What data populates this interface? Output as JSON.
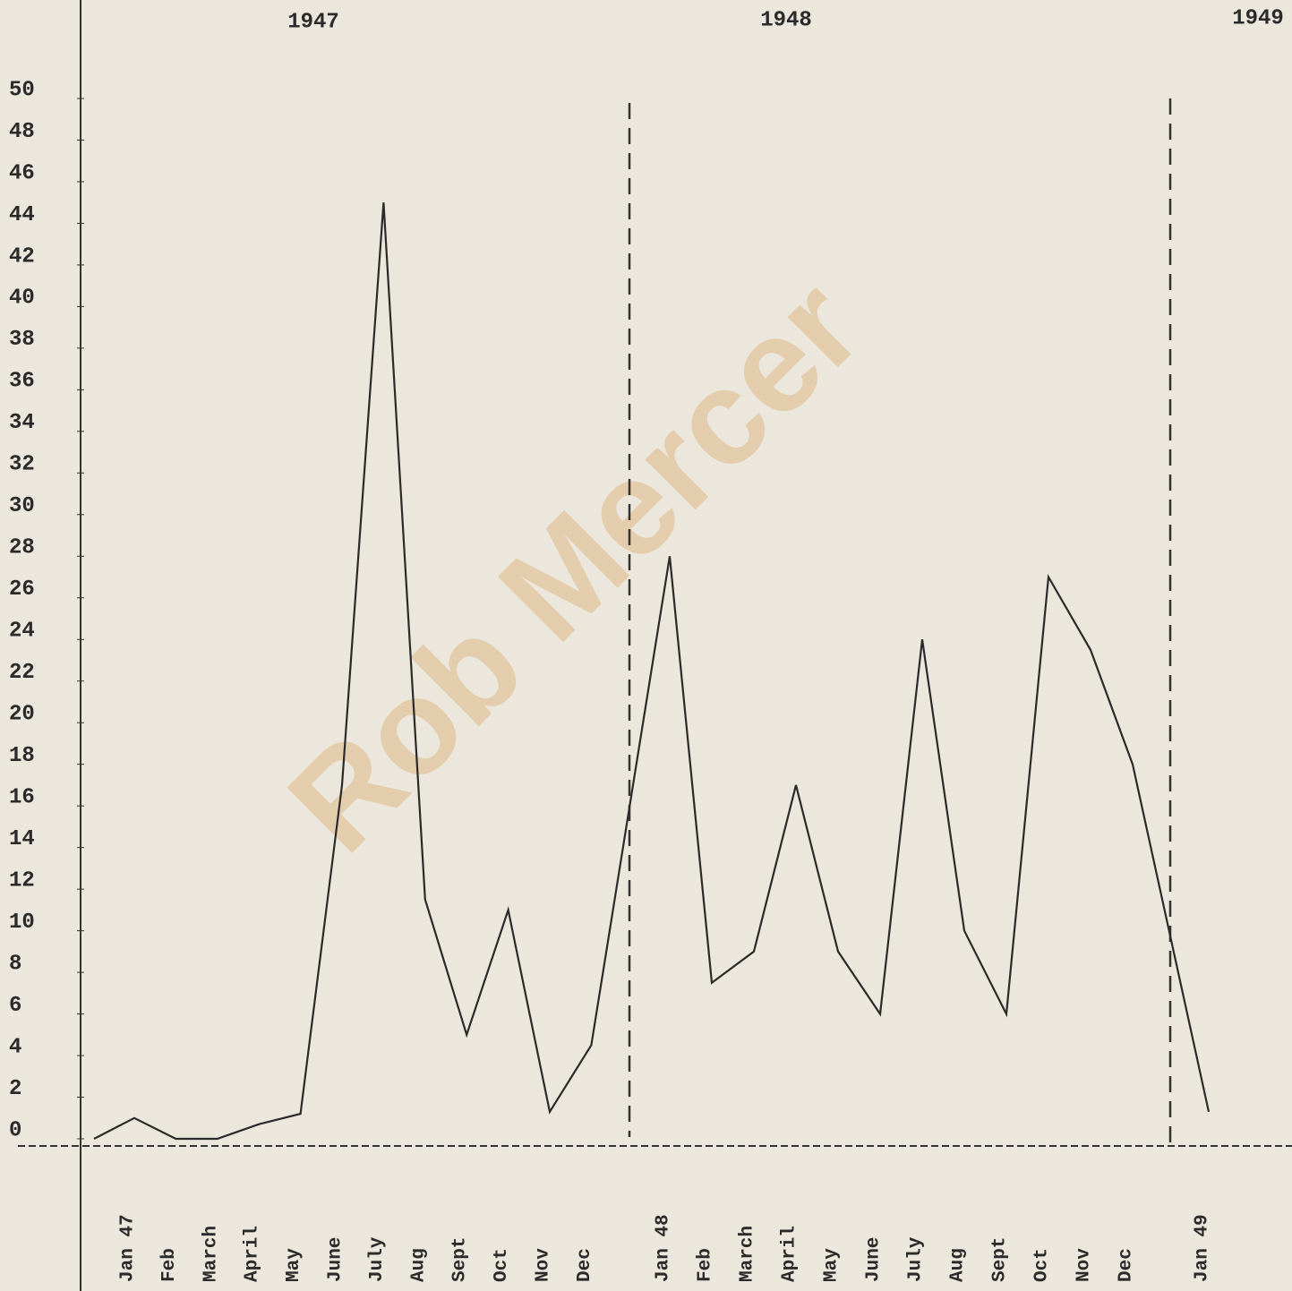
{
  "chart_data": {
    "type": "line",
    "annotations": [
      "1947",
      "1948",
      "1949"
    ],
    "watermark": "Rob Mercer",
    "categories": [
      null,
      "Jan 47",
      "Feb",
      "March",
      "April",
      "May",
      "June",
      "July",
      "Aug",
      "Sept",
      "Oct",
      "Nov",
      "Dec",
      "Jan 48",
      "Feb",
      "March",
      "April",
      "May",
      "June",
      "July",
      "Aug",
      "Sept",
      "Oct",
      "Nov",
      "Dec",
      "Jan 49"
    ],
    "values": [
      0,
      1,
      0,
      0,
      0.7,
      1.2,
      17,
      45,
      11.5,
      5,
      11,
      1.3,
      4.5,
      28,
      7.5,
      9,
      17,
      9,
      6,
      24,
      10,
      6,
      27,
      23.5,
      18,
      1.3
    ],
    "color": "#2a2a2a",
    "ylim": [
      0,
      50
    ],
    "yticks": [
      0,
      2,
      4,
      6,
      8,
      10,
      12,
      14,
      16,
      18,
      20,
      22,
      24,
      26,
      28,
      30,
      32,
      34,
      36,
      38,
      40,
      42,
      44,
      46,
      48,
      50
    ]
  }
}
